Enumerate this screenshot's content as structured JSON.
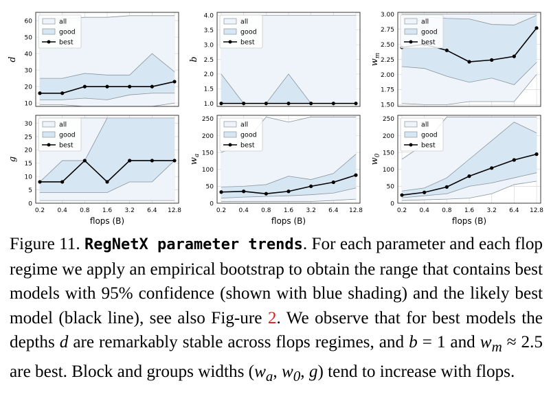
{
  "caption": {
    "figure_label": "Figure 11.",
    "title": "RegNetX parameter trends",
    "text_part1": ". For each parameter and each flop regime we apply an empirical bootstrap to obtain the range that contains best models with 95% confidence (shown with blue shading) and the likely best model (black line), see also Fig-ure ",
    "figure_ref": "2",
    "text_part2": ". We observe that for best models the depths ",
    "var_d": "d",
    "text_part3": " are remarkably stable across flops regimes, and ",
    "var_b": "b",
    "text_part4": " = 1 and ",
    "var_wm": "w",
    "var_wm_sub": "m",
    "text_part5": " ≈ 2.5 are best. Block and groups widths (",
    "var_wa": "w",
    "var_wa_sub": "a",
    "text_sep1": ", ",
    "var_w0": "w",
    "var_w0_sub": "0",
    "text_sep2": ", ",
    "var_g": "g",
    "text_part6": ") tend to increase with flops."
  },
  "colors": {
    "all_fill": "#eef4f9",
    "good_fill": "#d6e6f3",
    "band_edge": "#8a949e",
    "best_line": "#000000",
    "grid": "#d9d9d9"
  },
  "chart_data": [
    {
      "type": "line",
      "ylabel": "d",
      "ylabel_sub": "",
      "xlabel": "",
      "categories": [
        "0.2",
        "0.4",
        "0.8",
        "1.6",
        "3.2",
        "6.4",
        "12.8"
      ],
      "show_xticks": false,
      "ylim": [
        8,
        65
      ],
      "yticks": [
        "10",
        "20",
        "30",
        "40",
        "50",
        "60"
      ],
      "legend": [
        "all",
        "good",
        "best"
      ],
      "legend_loc": "upper-left",
      "all_lower": [
        9,
        9,
        8,
        8,
        8,
        8,
        10
      ],
      "all_upper": [
        61,
        61,
        62,
        62,
        63,
        63,
        63
      ],
      "good_lower": [
        12,
        12,
        13,
        12,
        15,
        16,
        16
      ],
      "good_upper": [
        25,
        25,
        28,
        27,
        27,
        40,
        29
      ],
      "best": [
        16,
        16,
        20,
        20,
        20,
        20,
        23
      ]
    },
    {
      "type": "line",
      "ylabel": "b",
      "ylabel_sub": "",
      "xlabel": "",
      "categories": [
        "0.2",
        "0.4",
        "0.8",
        "1.6",
        "3.2",
        "6.4",
        "12.8"
      ],
      "show_xticks": false,
      "ylim": [
        0.9,
        4.1
      ],
      "yticks": [
        "1.0",
        "1.5",
        "2.0",
        "2.5",
        "3.0",
        "3.5",
        "4.0"
      ],
      "legend": [
        "all",
        "good",
        "best"
      ],
      "legend_loc": "upper-left",
      "all_lower": [
        1.0,
        1.0,
        1.0,
        1.0,
        1.0,
        1.0,
        1.0
      ],
      "all_upper": [
        4.0,
        4.0,
        4.0,
        4.0,
        4.0,
        4.0,
        4.0
      ],
      "good_lower": [
        1.0,
        1.0,
        1.0,
        1.0,
        1.0,
        1.0,
        1.0
      ],
      "good_upper": [
        2.0,
        1.0,
        1.0,
        2.0,
        1.0,
        1.0,
        1.0
      ],
      "best": [
        1.0,
        1.0,
        1.0,
        1.0,
        1.0,
        1.0,
        1.0
      ]
    },
    {
      "type": "line",
      "ylabel": "w",
      "ylabel_sub": "m",
      "xlabel": "",
      "categories": [
        "0.2",
        "0.4",
        "0.8",
        "1.6",
        "3.2",
        "6.4",
        "12.8"
      ],
      "show_xticks": false,
      "ylim": [
        1.47,
        3.03
      ],
      "yticks": [
        "1.50",
        "1.75",
        "2.00",
        "2.25",
        "2.50",
        "2.75",
        "3.00"
      ],
      "legend": [
        "all",
        "good",
        "best"
      ],
      "legend_loc": "upper-left",
      "all_lower": [
        1.52,
        1.5,
        1.5,
        1.55,
        1.55,
        1.55,
        2.0
      ],
      "all_upper": [
        3.0,
        3.0,
        3.0,
        3.0,
        3.0,
        3.0,
        3.0
      ],
      "good_lower": [
        2.13,
        2.1,
        1.97,
        1.87,
        1.94,
        1.83,
        2.2
      ],
      "good_upper": [
        2.95,
        2.95,
        2.93,
        2.92,
        2.83,
        2.82,
        2.98
      ],
      "best": [
        2.45,
        2.5,
        2.4,
        2.21,
        2.24,
        2.3,
        2.77
      ]
    },
    {
      "type": "line",
      "ylabel": "g",
      "ylabel_sub": "",
      "xlabel": "flops (B)",
      "categories": [
        "0.2",
        "0.4",
        "0.8",
        "1.6",
        "3.2",
        "6.4",
        "12.8"
      ],
      "show_xticks": true,
      "ylim": [
        0,
        33
      ],
      "yticks": [
        "0",
        "5",
        "10",
        "15",
        "20",
        "25",
        "30"
      ],
      "legend": [
        "all",
        "good",
        "best"
      ],
      "legend_loc": "upper-left",
      "all_lower": [
        1,
        1,
        1,
        1,
        1,
        1,
        1
      ],
      "all_upper": [
        32,
        32,
        32,
        32,
        32,
        32,
        32
      ],
      "good_lower": [
        4,
        4,
        4,
        4,
        8,
        8,
        16
      ],
      "good_upper": [
        8,
        16,
        16,
        32,
        32,
        32,
        32
      ],
      "best": [
        8,
        8,
        16,
        8,
        16,
        16,
        16
      ]
    },
    {
      "type": "line",
      "ylabel": "w",
      "ylabel_sub": "a",
      "xlabel": "flops (B)",
      "categories": [
        "0.2",
        "0.4",
        "0.8",
        "1.6",
        "3.2",
        "6.4",
        "12.8"
      ],
      "show_xticks": true,
      "ylim": [
        0,
        260
      ],
      "yticks": [
        "0",
        "50",
        "100",
        "150",
        "200",
        "250"
      ],
      "legend": [
        "all",
        "good",
        "best"
      ],
      "legend_loc": "upper-left",
      "all_lower": [
        5,
        5,
        5,
        5,
        5,
        8,
        12
      ],
      "all_upper": [
        150,
        175,
        255,
        240,
        255,
        255,
        255
      ],
      "good_lower": [
        15,
        18,
        20,
        22,
        25,
        30,
        45
      ],
      "good_upper": [
        48,
        50,
        55,
        80,
        70,
        88,
        145
      ],
      "best": [
        33,
        35,
        28,
        35,
        50,
        62,
        83
      ]
    },
    {
      "type": "line",
      "ylabel": "w",
      "ylabel_sub": "0",
      "xlabel": "flops (B)",
      "categories": [
        "0.2",
        "0.4",
        "0.8",
        "1.6",
        "3.2",
        "6.4",
        "12.8"
      ],
      "show_xticks": true,
      "ylim": [
        0,
        260
      ],
      "yticks": [
        "0",
        "50",
        "100",
        "150",
        "200",
        "250"
      ],
      "legend": [
        "all",
        "good",
        "best"
      ],
      "legend_loc": "upper-left",
      "all_lower": [
        8,
        10,
        12,
        15,
        28,
        55,
        65
      ],
      "all_upper": [
        130,
        175,
        255,
        255,
        255,
        255,
        255
      ],
      "good_lower": [
        16,
        22,
        28,
        50,
        60,
        75,
        90
      ],
      "good_upper": [
        36,
        45,
        75,
        130,
        185,
        240,
        208
      ],
      "best": [
        24,
        32,
        48,
        80,
        104,
        128,
        145
      ]
    }
  ]
}
